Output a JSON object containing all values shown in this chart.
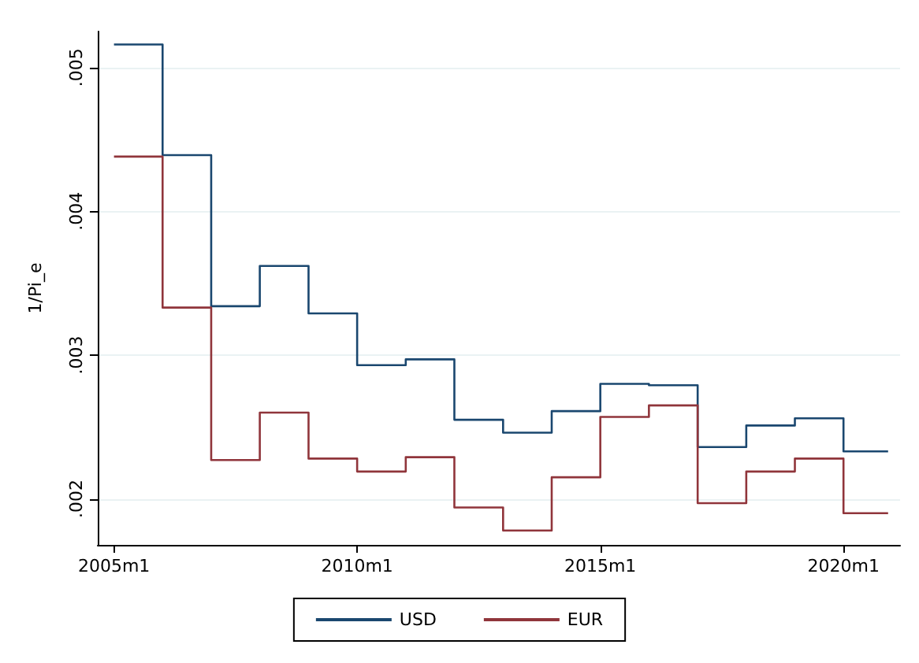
{
  "chart_data": {
    "type": "step",
    "ylabel": "1/Pi_e",
    "x": [
      "2005-01",
      "2006-01",
      "2007-01",
      "2008-01",
      "2009-01",
      "2010-01",
      "2011-01",
      "2012-01",
      "2013-01",
      "2014-01",
      "2015-01",
      "2016-01",
      "2017-01",
      "2018-01",
      "2019-01",
      "2020-01",
      "2020-12"
    ],
    "series": [
      {
        "name": "USD",
        "color": "#1a476f",
        "values": [
          0.00516,
          0.00439,
          0.00334,
          0.00362,
          0.00329,
          0.00293,
          0.00297,
          0.00255,
          0.00246,
          0.00261,
          0.0028,
          0.00279,
          0.00236,
          0.00251,
          0.00256,
          0.00233,
          0.00233
        ]
      },
      {
        "name": "EUR",
        "color": "#90353b",
        "values": [
          0.00438,
          0.00333,
          0.00227,
          0.0026,
          0.00228,
          0.00219,
          0.00229,
          0.00194,
          0.00178,
          0.00215,
          0.00257,
          0.00265,
          0.00197,
          0.00219,
          0.00228,
          0.0019,
          0.0019
        ]
      }
    ],
    "xlim": [
      "2004-09",
      "2021-03"
    ],
    "ylim": [
      0.00168,
      0.00525
    ],
    "xticks": [
      {
        "value": "2005-01",
        "label": "2005m1"
      },
      {
        "value": "2010-01",
        "label": "2010m1"
      },
      {
        "value": "2015-01",
        "label": "2015m1"
      },
      {
        "value": "2020-01",
        "label": "2020m1"
      }
    ],
    "yticks": [
      {
        "value": 0.002,
        "label": ".002"
      },
      {
        "value": 0.003,
        "label": ".003"
      },
      {
        "value": 0.004,
        "label": ".004"
      },
      {
        "value": 0.005,
        "label": ".005"
      }
    ],
    "grid": "y",
    "legend": "bottom",
    "marker": "none",
    "line_style": "solid"
  }
}
